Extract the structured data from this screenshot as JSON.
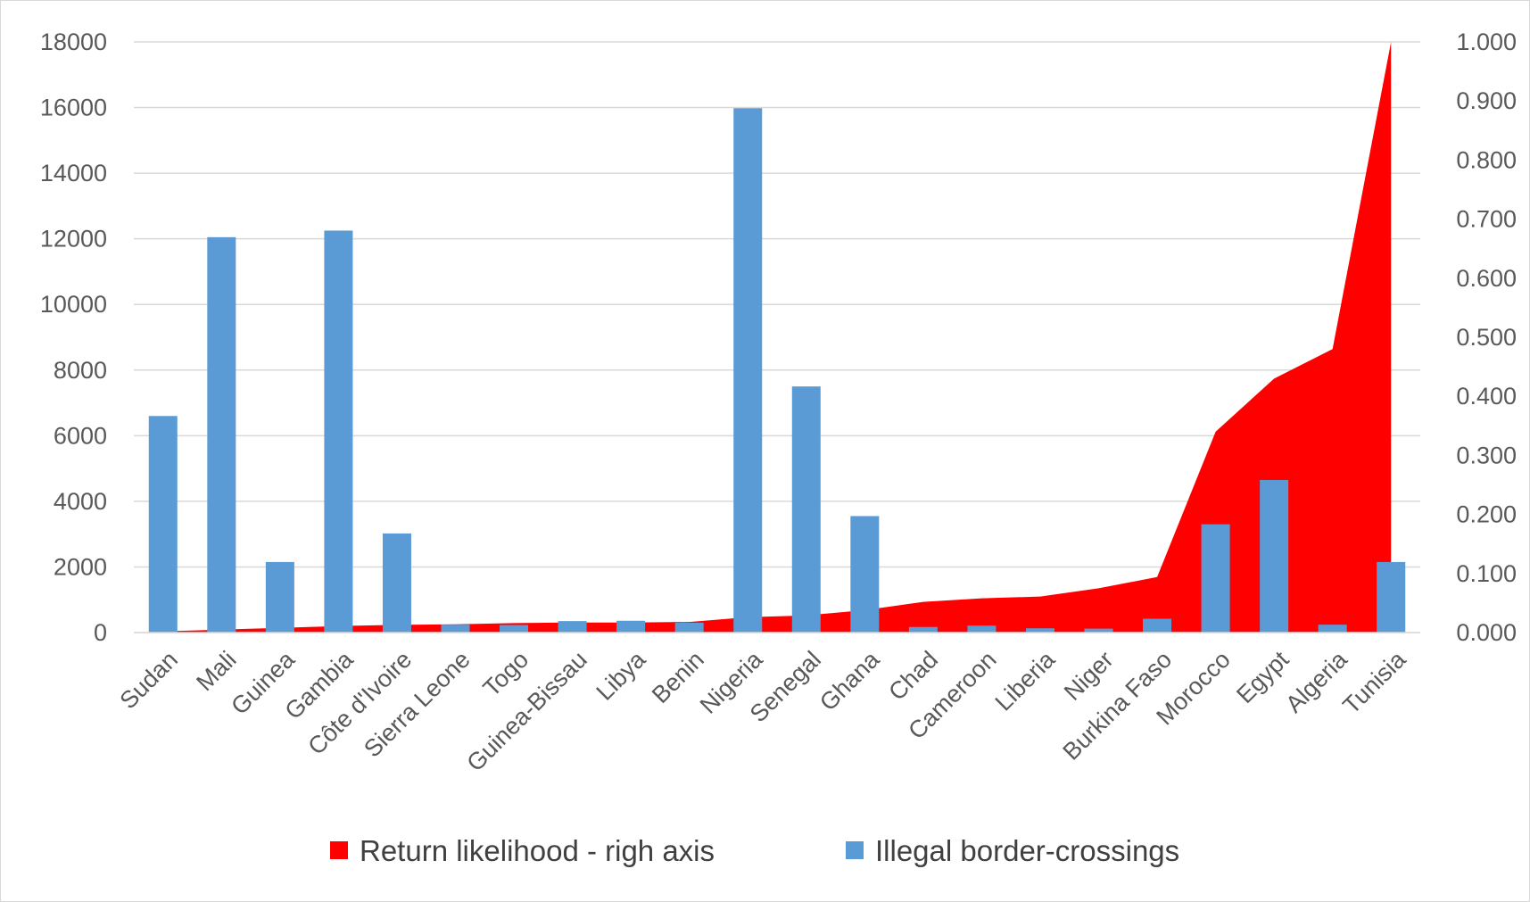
{
  "chart_data": {
    "type": "bar",
    "title": "",
    "xlabel": "",
    "ylabel": "",
    "categories": [
      "Sudan",
      "Mali",
      "Guinea",
      "Gambia",
      "Côte d'Ivoire",
      "Sierra Leone",
      "Togo",
      "Guinea-Bissau",
      "Libya",
      "Benin",
      "Nigeria",
      "Senegal",
      "Ghana",
      "Chad",
      "Cameroon",
      "Liberia",
      "Niger",
      "Burkina Faso",
      "Morocco",
      "Egypt",
      "Algeria",
      "Tunisia"
    ],
    "ylim": [
      0,
      18000
    ],
    "y_ticks": [
      "0",
      "2000",
      "4000",
      "6000",
      "8000",
      "10000",
      "12000",
      "14000",
      "16000",
      "18000"
    ],
    "y2lim": [
      0,
      1.0
    ],
    "y2_ticks": [
      "0.000",
      "0.100",
      "0.200",
      "0.300",
      "0.400",
      "0.500",
      "0.600",
      "0.700",
      "0.800",
      "0.900",
      "1.000"
    ],
    "grid": true,
    "legend_position": "bottom",
    "series": [
      {
        "name": "Return likelihood - righ axis",
        "type": "area",
        "axis": "right",
        "color": "#ff0000",
        "values": [
          0.002,
          0.005,
          0.008,
          0.011,
          0.013,
          0.014,
          0.016,
          0.017,
          0.017,
          0.018,
          0.026,
          0.029,
          0.038,
          0.052,
          0.058,
          0.061,
          0.075,
          0.094,
          0.34,
          0.43,
          0.48,
          1.0
        ]
      },
      {
        "name": "Illegal border-crossings",
        "type": "bar",
        "axis": "left",
        "color": "#5b9bd5",
        "values": [
          6600,
          12050,
          2150,
          12250,
          3020,
          240,
          230,
          350,
          360,
          300,
          15980,
          7500,
          3550,
          170,
          210,
          130,
          120,
          420,
          3300,
          4650,
          240,
          2150
        ]
      }
    ]
  }
}
